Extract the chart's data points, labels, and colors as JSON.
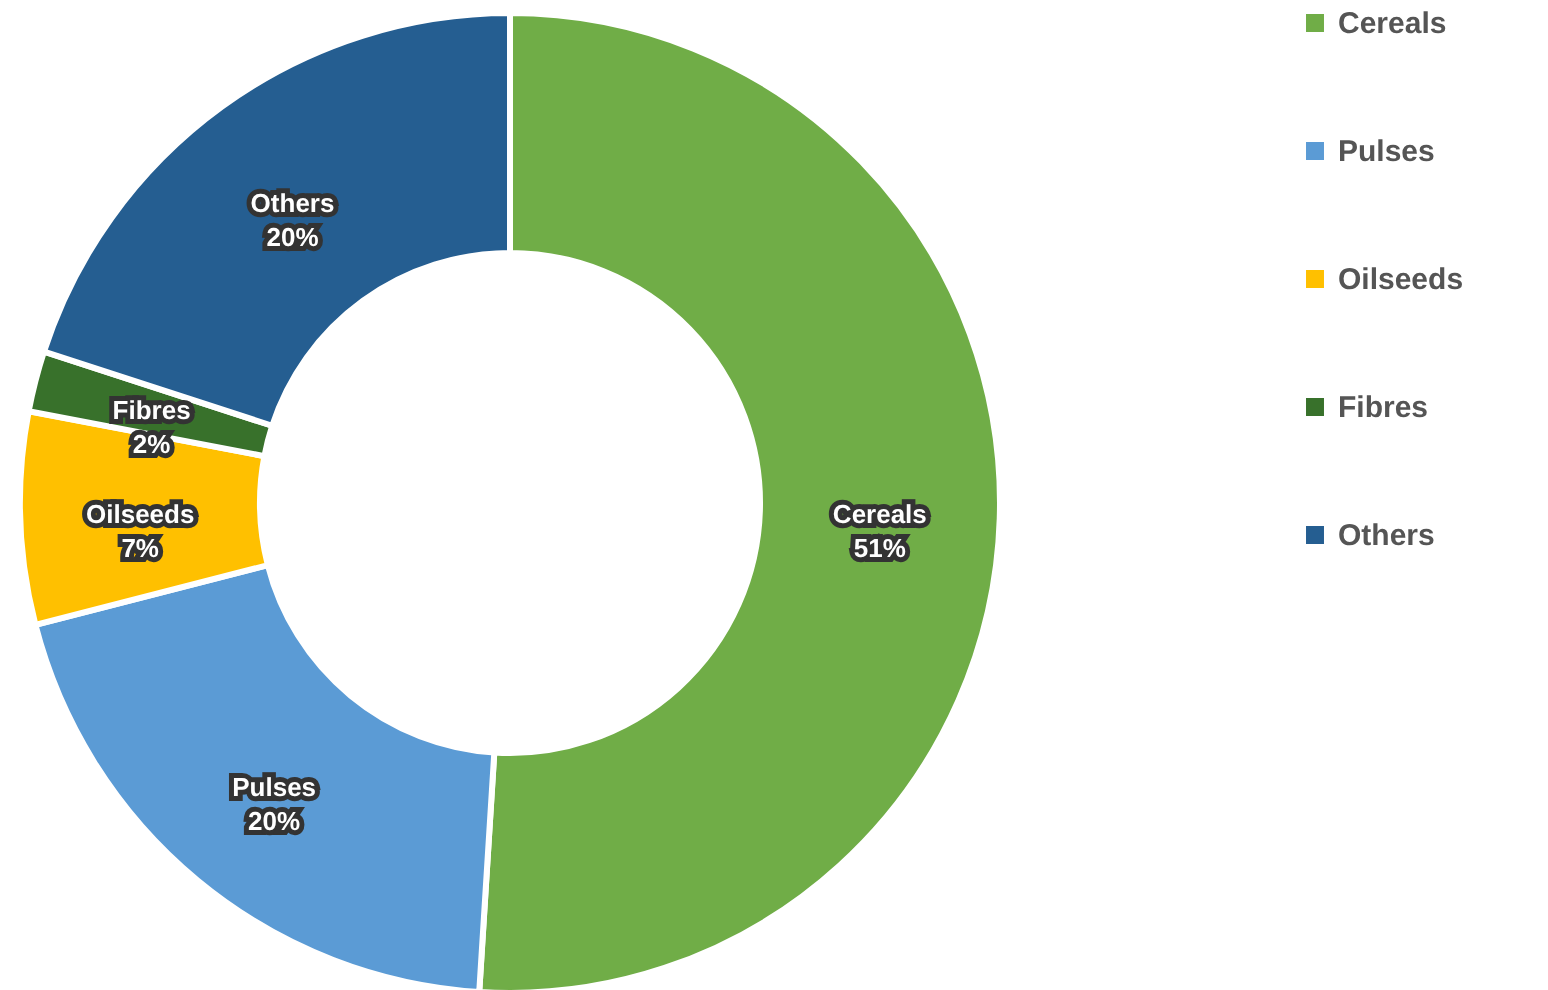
{
  "chart_data": {
    "type": "donut",
    "categories": [
      "Cereals",
      "Pulses",
      "Oilseeds",
      "Fibres",
      "Others"
    ],
    "values": [
      51,
      20,
      7,
      2,
      20
    ],
    "value_labels": [
      "51%",
      "20%",
      "7%",
      "2%",
      "20%"
    ],
    "colors": [
      "#70ad47",
      "#5b9bd5",
      "#ffc000",
      "#38712b",
      "#255e91"
    ],
    "legend": "right"
  }
}
